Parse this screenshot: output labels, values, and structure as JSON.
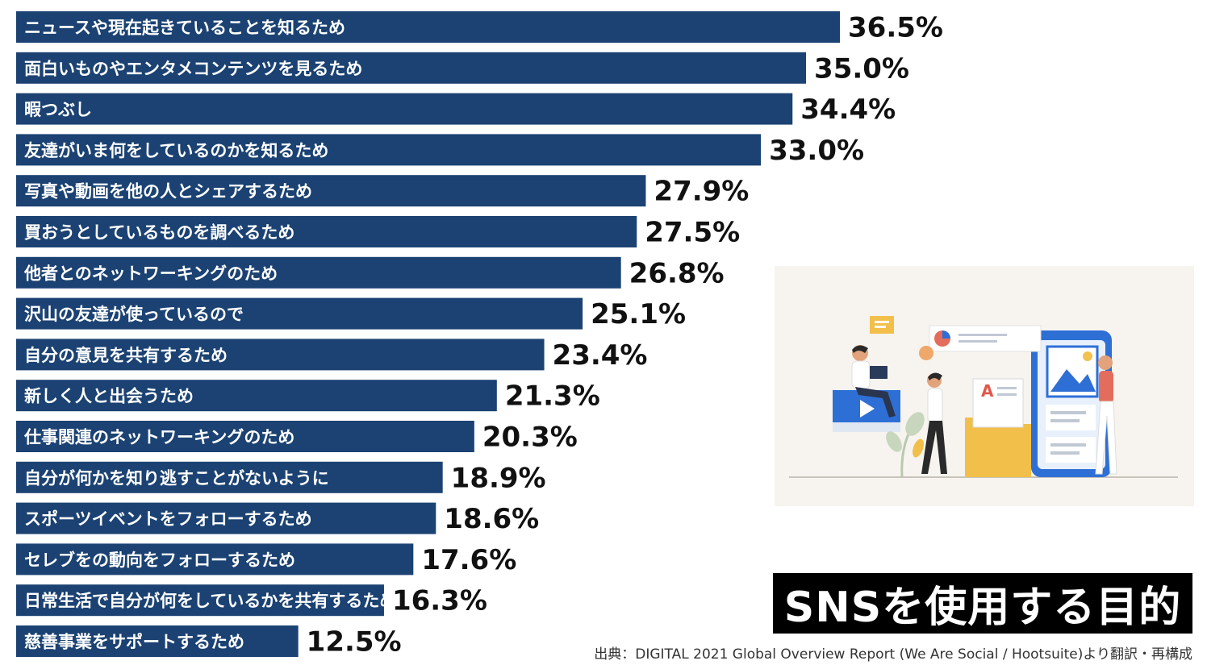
{
  "title": "SNSを使用する目的",
  "source": "出典：DIGITAL 2021 Global Overview Report (We Are Social / Hootsuite)より翻訳・再構成",
  "colors": {
    "bar": "#1b4272",
    "bar_text": "#ffffff",
    "value_text": "#111111",
    "title_bg": "#000000",
    "title_text": "#ffffff"
  },
  "chart_data": {
    "type": "bar",
    "orientation": "horizontal",
    "title": "SNSを使用する目的",
    "categories": [
      "ニュースや現在起きていることを知るため",
      "面白いものやエンタメコンテンツを見るため",
      "暇つぶし",
      "友達がいま何をしているのかを知るため",
      "写真や動画を他の人とシェアするため",
      "買おうとしているものを調べるため",
      "他者とのネットワーキングのため",
      "沢山の友達が使っているので",
      "自分の意見を共有するため",
      "新しく人と出会うため",
      "仕事関連のネットワーキングのため",
      "自分が何かを知り逃すことがないように",
      "スポーツイベントをフォローするため",
      "セレブをの動向をフォローするため",
      "日常生活で自分が何をしているかを共有するため",
      "慈善事業をサポートするため"
    ],
    "values": [
      36.5,
      35.0,
      34.4,
      33.0,
      27.9,
      27.5,
      26.8,
      25.1,
      23.4,
      21.3,
      20.3,
      18.9,
      18.6,
      17.6,
      16.3,
      12.5
    ],
    "value_labels": [
      "36.5%",
      "35.0%",
      "34.4%",
      "33.0%",
      "27.9%",
      "27.5%",
      "26.8%",
      "25.1%",
      "23.4%",
      "21.3%",
      "20.3%",
      "18.9%",
      "18.6%",
      "17.6%",
      "16.3%",
      "12.5%"
    ],
    "unit": "%",
    "xlim": [
      0,
      36.5
    ],
    "grid": false,
    "legend": "none"
  }
}
